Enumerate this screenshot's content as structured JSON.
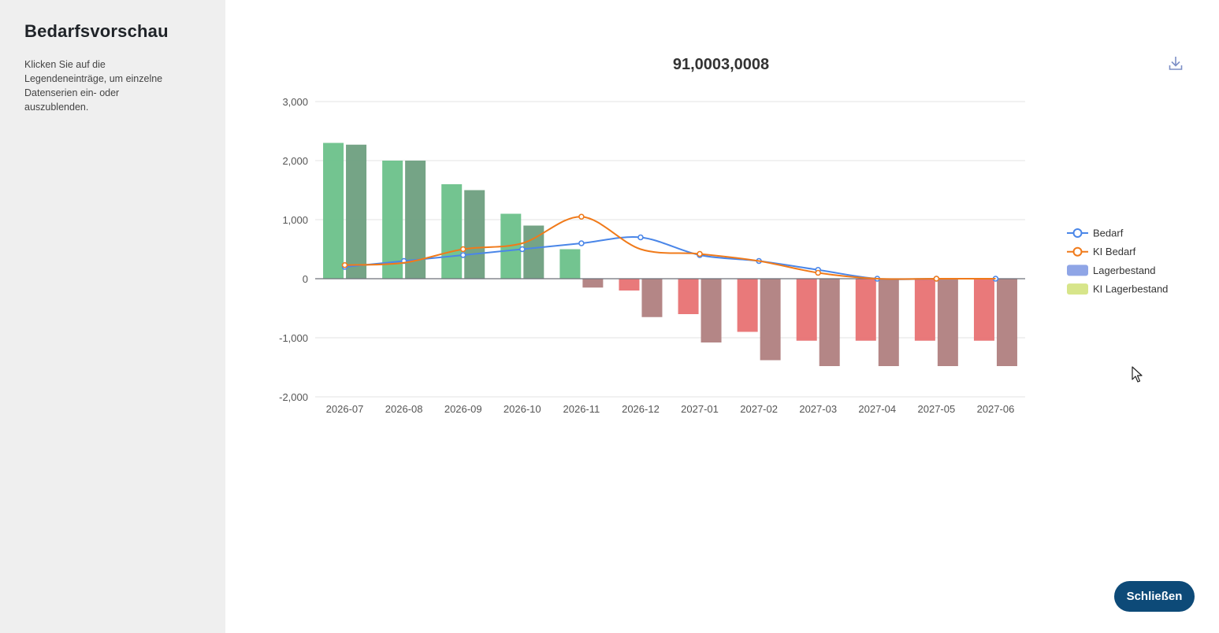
{
  "sidebar": {
    "title": "Bedarfsvorschau",
    "hint": "Klicken Sie auf die Legendeneinträge, um einzelne Datenserien ein- oder auszublenden."
  },
  "actions": {
    "close_label": "Schließen",
    "download_icon": "download-icon"
  },
  "colors": {
    "bedarf": "#4a86e8",
    "ki_bedarf": "#f07a1a",
    "lager_positive": "#6cc18a",
    "lager_negative": "#e87273",
    "ki_lager_positive": "#6e9f80",
    "ki_lager_negative": "#b07f80",
    "legend_lagerbestand": "#8fa5e6",
    "legend_ki_lagerbestand": "#d7e58a",
    "primary_button": "#0d4a78"
  },
  "chart_data": {
    "type": "bar",
    "title": "91,0003,0008",
    "categories": [
      "2026-07",
      "2026-08",
      "2026-09",
      "2026-10",
      "2026-11",
      "2026-12",
      "2027-01",
      "2027-02",
      "2027-03",
      "2027-04",
      "2027-05",
      "2027-06"
    ],
    "ylim": [
      -2000,
      3000
    ],
    "yticks": [
      3000,
      2000,
      1000,
      0,
      -1000,
      -2000
    ],
    "ytick_labels": [
      "3,000",
      "2,000",
      "1,000",
      "0",
      "-1,000",
      "-2,000"
    ],
    "grid": true,
    "legend_position": "right",
    "series": [
      {
        "name": "Bedarf",
        "type": "line",
        "smooth": true,
        "values": [
          200,
          300,
          400,
          500,
          600,
          700,
          400,
          300,
          150,
          0,
          0,
          0
        ]
      },
      {
        "name": "KI Bedarf",
        "type": "line",
        "smooth": true,
        "values": [
          230,
          270,
          500,
          600,
          1050,
          500,
          420,
          300,
          100,
          0,
          0,
          0
        ]
      },
      {
        "name": "Lagerbestand",
        "type": "bar",
        "values": [
          2300,
          2000,
          1600,
          1100,
          500,
          -200,
          -600,
          -900,
          -1050,
          -1050,
          -1050,
          -1050
        ]
      },
      {
        "name": "KI Lagerbestand",
        "type": "bar",
        "values": [
          2270,
          2000,
          1500,
          900,
          -150,
          -650,
          -1080,
          -1380,
          -1480,
          -1480,
          -1480,
          -1480
        ]
      }
    ]
  }
}
